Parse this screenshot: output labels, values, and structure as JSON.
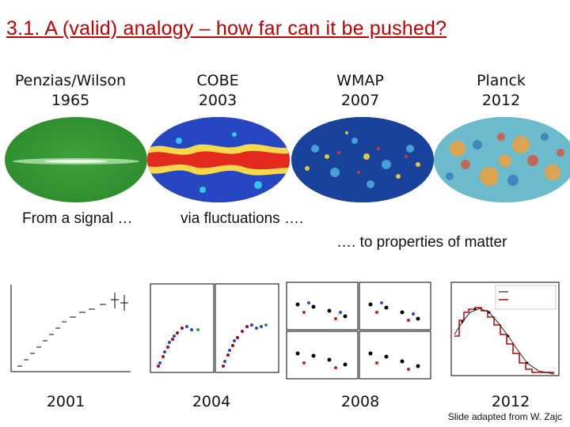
{
  "title": "3.1. A (valid) analogy – how far can it be pushed?",
  "maps": [
    {
      "name": "Penzias/Wilson",
      "year": "1965"
    },
    {
      "name": "COBE",
      "year": "2003"
    },
    {
      "name": "WMAP",
      "year": "2007"
    },
    {
      "name": "Planck",
      "year": "2012"
    }
  ],
  "captions": {
    "signal": "From a signal …",
    "fluct": "via fluctuations ….",
    "matter": "…. to properties of matter"
  },
  "plot_years": [
    "2001",
    "2004",
    "2008",
    "2012"
  ],
  "credit": "Slide adapted from W. Zajc"
}
